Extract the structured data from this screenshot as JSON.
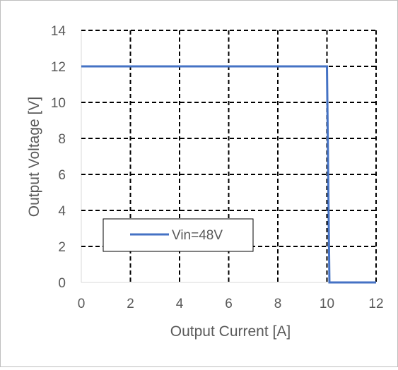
{
  "chart_data": {
    "type": "line",
    "title": "",
    "xlabel": "Output Current [A]",
    "ylabel": "Output Voltage [V]",
    "xlim": [
      0,
      12
    ],
    "ylim": [
      0,
      14
    ],
    "x_ticks": [
      0,
      2,
      4,
      6,
      8,
      10,
      12
    ],
    "y_ticks": [
      0,
      2,
      4,
      6,
      8,
      10,
      12,
      14
    ],
    "x_tick_labels": [
      "0",
      "2",
      "4",
      "6",
      "8",
      "10",
      "12"
    ],
    "y_tick_labels": [
      "0",
      "2",
      "4",
      "6",
      "8",
      "10",
      "12",
      "14"
    ],
    "grid": true,
    "grid_style": "dashed",
    "legend_position": "lower-left",
    "series": [
      {
        "name": "Vin=48V",
        "color": "#4472c4",
        "x": [
          0,
          10.0,
          10.1,
          12
        ],
        "y": [
          12,
          12,
          0,
          0
        ]
      }
    ]
  },
  "colors": {
    "series": "#4472c4",
    "grid": "#000000",
    "text": "#595959",
    "border": "#bfbfbf"
  }
}
